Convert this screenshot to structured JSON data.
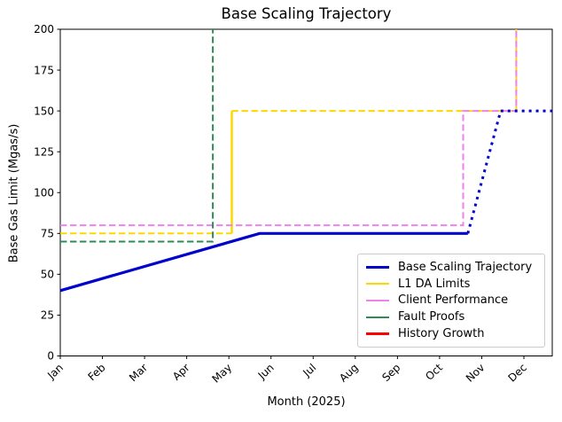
{
  "chart_data": {
    "type": "line",
    "title": "Base Scaling Trajectory",
    "xlabel": "Month (2025)",
    "ylabel": "Base Gas Limit (Mgas/s)",
    "x_tick_labels": [
      "Jan",
      "Feb",
      "Mar",
      "Apr",
      "May",
      "Jun",
      "Jul",
      "Aug",
      "Sep",
      "Oct",
      "Nov",
      "Dec"
    ],
    "x_tick_rotation_deg": 43,
    "y_ticks": [
      0,
      25,
      50,
      75,
      100,
      125,
      150,
      175,
      200
    ],
    "ylim": [
      0,
      200
    ],
    "xlim_month_index": [
      0,
      11.67
    ],
    "x_unit": "month index (Jan=0, fractions = position within month)",
    "grid": false,
    "legend_position": "lower right",
    "series": [
      {
        "name": "L1 DA Limits (initial)",
        "legend": "L1 DA Limits",
        "color": "#ffd700",
        "style": "dashed",
        "width": 2,
        "points": [
          [
            0,
            75
          ],
          [
            4.07,
            75
          ]
        ]
      },
      {
        "name": "L1 DA Limits (step up)",
        "legend": "L1 DA Limits",
        "color": "#ffd700",
        "style": "solid",
        "width": 2.5,
        "points": [
          [
            4.07,
            75
          ],
          [
            4.07,
            150
          ]
        ]
      },
      {
        "name": "L1 DA Limits (raised)",
        "legend": "L1 DA Limits",
        "color": "#ffd700",
        "style": "dashed",
        "width": 2,
        "points": [
          [
            4.07,
            150
          ],
          [
            10.82,
            150
          ],
          [
            10.82,
            200
          ]
        ]
      },
      {
        "name": "Client Performance",
        "legend": "Client Performance",
        "color": "#ee82ee",
        "style": "dashed",
        "width": 2,
        "points": [
          [
            0,
            80
          ],
          [
            9.56,
            80
          ],
          [
            9.56,
            150
          ],
          [
            10.82,
            150
          ],
          [
            10.82,
            200
          ]
        ]
      },
      {
        "name": "Fault Proofs",
        "legend": "Fault Proofs",
        "color": "#2e8b57",
        "style": "dashed",
        "width": 2,
        "points": [
          [
            0,
            70
          ],
          [
            3.62,
            70
          ],
          [
            3.62,
            200
          ]
        ]
      },
      {
        "name": "History Growth",
        "legend": "History Growth",
        "color": "#ff0000",
        "style": "solid",
        "width": 2,
        "points": []
      },
      {
        "name": "Base Scaling Trajectory (actual)",
        "legend": "Base Scaling Trajectory",
        "color": "#0000cd",
        "style": "solid",
        "width": 3.2,
        "points": [
          [
            0,
            40
          ],
          [
            4.73,
            75
          ],
          [
            9.67,
            75
          ]
        ]
      },
      {
        "name": "Base Scaling Trajectory (projected)",
        "legend": "Base Scaling Trajectory",
        "color": "#0000cd",
        "style": "dotted",
        "width": 3,
        "points": [
          [
            9.67,
            75
          ],
          [
            10.45,
            150
          ],
          [
            11.67,
            150
          ]
        ]
      }
    ]
  },
  "legend": {
    "items": [
      {
        "label": "Base Scaling Trajectory",
        "color": "#0000cd"
      },
      {
        "label": "L1 DA Limits",
        "color": "#ffd700"
      },
      {
        "label": "Client Performance",
        "color": "#ee82ee"
      },
      {
        "label": "Fault Proofs",
        "color": "#2e8b57"
      },
      {
        "label": "History Growth",
        "color": "#ff0000"
      }
    ]
  },
  "axis_color": "#000000"
}
